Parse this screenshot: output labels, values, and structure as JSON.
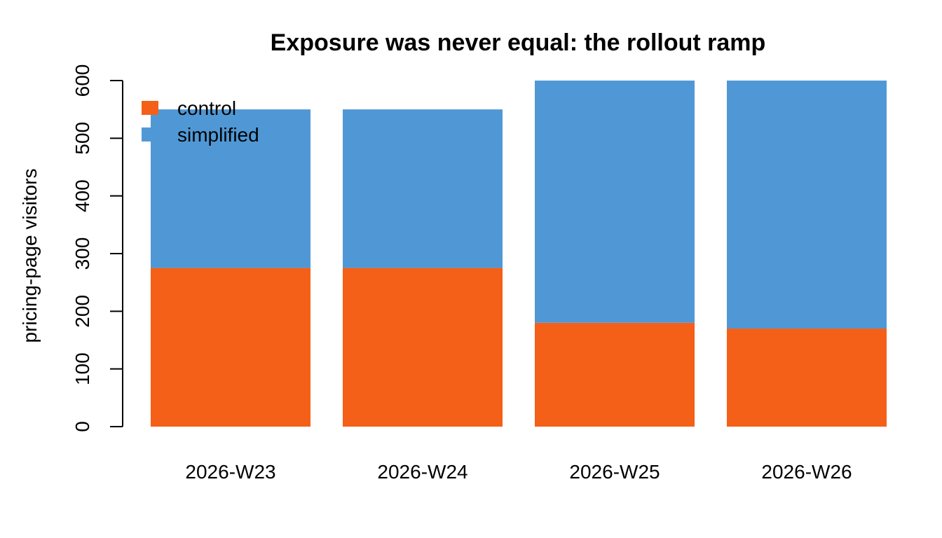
{
  "chart_data": {
    "type": "bar",
    "stacked": true,
    "title": "Exposure was never equal: the rollout ramp",
    "xlabel": "",
    "ylabel": "pricing-page visitors",
    "categories": [
      "2026-W23",
      "2026-W24",
      "2026-W25",
      "2026-W26"
    ],
    "series": [
      {
        "name": "control",
        "values": [
          275,
          275,
          180,
          170
        ],
        "color": "#F46017"
      },
      {
        "name": "simplified",
        "values": [
          275,
          275,
          420,
          430
        ],
        "color": "#5098D5"
      }
    ],
    "ylim": [
      0,
      600
    ],
    "yticks": [
      "0",
      "100",
      "200",
      "300",
      "400",
      "500",
      "600"
    ],
    "grid": false,
    "legend_position": "top-left"
  }
}
